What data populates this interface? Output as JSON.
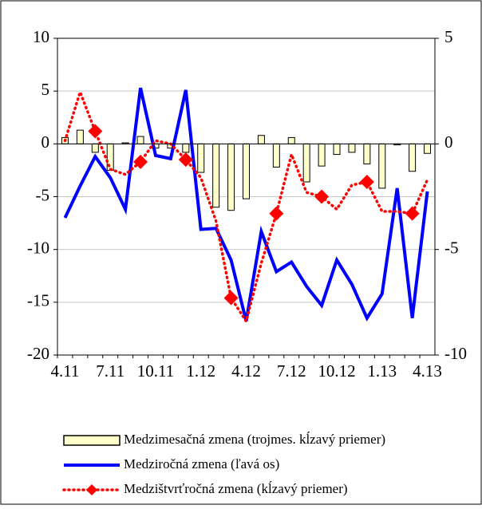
{
  "chart_data": {
    "type": "combo",
    "categories": [
      "4.11",
      null,
      null,
      "7.11",
      null,
      null,
      "10.11",
      null,
      null,
      "1.12",
      null,
      null,
      "4.12",
      null,
      null,
      "7.12",
      null,
      null,
      "10.12",
      null,
      null,
      "1.13",
      null,
      null,
      "4.13"
    ],
    "ylim": [
      -20,
      10
    ],
    "yticks": [
      -20,
      -15,
      -10,
      -5,
      0,
      5,
      10
    ],
    "y2lim": [
      -10,
      5
    ],
    "y2ticks": [
      -10,
      -5,
      0,
      5
    ],
    "grid": true,
    "series": [
      {
        "name": "Medzimesačná zmena (trojmes. kĺzavý priemer)",
        "type": "bar",
        "axis": "y2",
        "color": "#ffffcc",
        "values": [
          0.3,
          0.65,
          -0.4,
          -1.25,
          0.05,
          0.35,
          -0.2,
          -0.2,
          -0.4,
          -1.35,
          -3.0,
          -3.15,
          -2.6,
          0.4,
          -1.1,
          0.3,
          -1.8,
          -1.05,
          -0.5,
          -0.4,
          -0.95,
          -2.1,
          -0.05,
          -1.3,
          -0.45
        ]
      },
      {
        "name": "Medziročná zmena (ľavá os)",
        "type": "line",
        "axis": "y",
        "color": "#0000ff",
        "values": [
          -7.0,
          -4.0,
          -1.2,
          -3.2,
          -6.2,
          5.3,
          -1.1,
          -1.4,
          5.1,
          -8.1,
          -8.0,
          -11.0,
          -16.8,
          -8.3,
          -12.1,
          -11.2,
          -13.5,
          -15.3,
          -11.0,
          -13.3,
          -16.5,
          -14.2,
          -4.2,
          -16.5,
          -4.5
        ]
      },
      {
        "name": "Medzištvrťročná zmena (kĺzavý priemer)",
        "type": "dotted",
        "axis": "y2",
        "color": "#ff0000",
        "values": [
          0.15,
          2.45,
          0.6,
          -1.2,
          -1.45,
          -0.85,
          0.15,
          0,
          -0.75,
          -1.6,
          -3.65,
          -7.3,
          -8.4,
          -5.65,
          -3.3,
          -0.5,
          -2.3,
          -2.5,
          -3.1,
          -1.95,
          -1.8,
          -3.2,
          -3.2,
          -3.3,
          -1.7
        ]
      }
    ]
  }
}
